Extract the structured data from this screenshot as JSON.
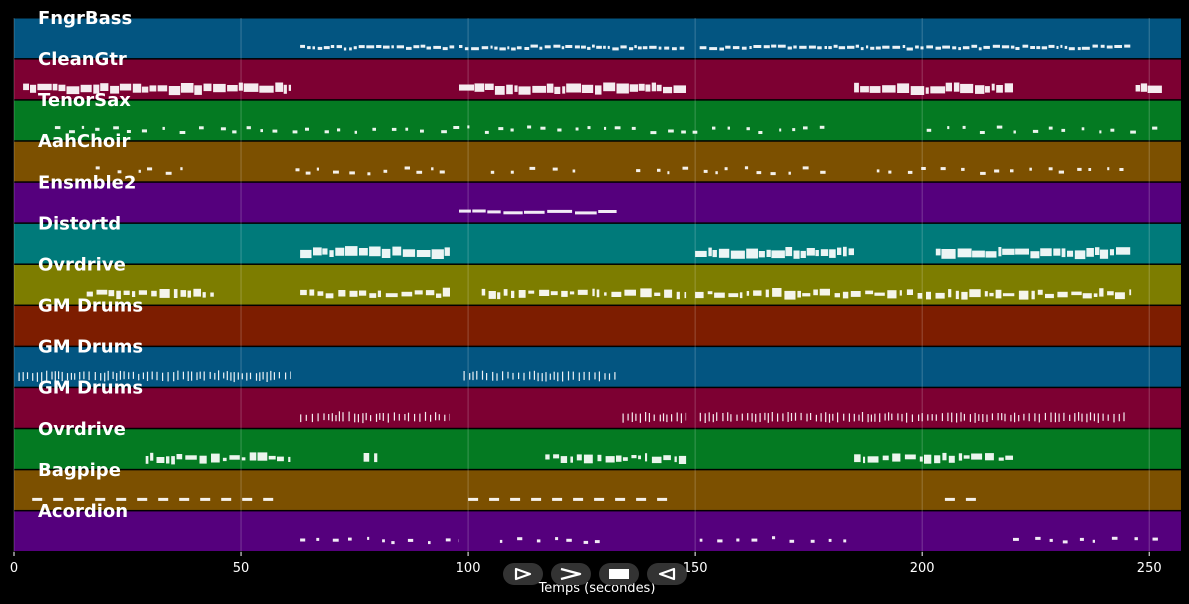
{
  "colors": {
    "background": "#000000",
    "track_palette": [
      "#035581",
      "#7d0032",
      "#047a22",
      "#7c5000",
      "#55007d",
      "#007a7a",
      "#7d7d00",
      "#7d1d00"
    ],
    "note": "#ffffff",
    "grid": "#ffffff"
  },
  "tracks": [
    {
      "name": "FngrBass",
      "color": "#035581"
    },
    {
      "name": "CleanGtr",
      "color": "#7d0032"
    },
    {
      "name": "TenorSax",
      "color": "#047a22"
    },
    {
      "name": "AahChoir",
      "color": "#7c5000"
    },
    {
      "name": "Ensmble2",
      "color": "#55007d"
    },
    {
      "name": "Distortd",
      "color": "#007a7a"
    },
    {
      "name": "Ovrdrive",
      "color": "#7d7d00"
    },
    {
      "name": "GM Drums",
      "color": "#7d1d00"
    },
    {
      "name": "GM Drums",
      "color": "#035581"
    },
    {
      "name": "GM Drums",
      "color": "#7d0032"
    },
    {
      "name": "Ovrdrive",
      "color": "#047a22"
    },
    {
      "name": "Bagpipe",
      "color": "#7c5000"
    },
    {
      "name": "Acordion",
      "color": "#55007d"
    }
  ],
  "axis": {
    "xlabel": "Temps (secondes)",
    "xlim": [
      0,
      257
    ],
    "ticks": [
      "0",
      "50",
      "100",
      "150",
      "200",
      "250"
    ],
    "tick_values": [
      0,
      50,
      100,
      150,
      200,
      250
    ]
  },
  "note_segments": [
    {
      "track": 0,
      "ranges": [
        [
          63,
          97
        ],
        [
          98,
          148
        ],
        [
          151,
          246
        ]
      ],
      "style": "dense"
    },
    {
      "track": 1,
      "ranges": [
        [
          2,
          61
        ],
        [
          98,
          148
        ],
        [
          185,
          220
        ],
        [
          247,
          253
        ]
      ],
      "style": "block"
    },
    {
      "track": 2,
      "ranges": [
        [
          9,
          181
        ],
        [
          201,
          252
        ]
      ],
      "style": "sparse"
    },
    {
      "track": 3,
      "ranges": [
        [
          18,
          38
        ],
        [
          62,
          97
        ],
        [
          105,
          126
        ],
        [
          137,
          181
        ],
        [
          190,
          246
        ]
      ],
      "style": "sparse"
    },
    {
      "track": 4,
      "ranges": [
        [
          98,
          133
        ]
      ],
      "style": "line"
    },
    {
      "track": 5,
      "ranges": [
        [
          63,
          96
        ],
        [
          150,
          185
        ],
        [
          203,
          246
        ]
      ],
      "style": "block"
    },
    {
      "track": 6,
      "ranges": [
        [
          16,
          44
        ],
        [
          63,
          96
        ],
        [
          103,
          148
        ],
        [
          150,
          246
        ]
      ],
      "style": "mixed"
    },
    {
      "track": 7,
      "ranges": [],
      "style": "none"
    },
    {
      "track": 8,
      "ranges": [
        [
          1,
          61
        ],
        [
          99,
          133
        ]
      ],
      "style": "ticks"
    },
    {
      "track": 9,
      "ranges": [
        [
          63,
          96
        ],
        [
          134,
          148
        ],
        [
          151,
          245
        ]
      ],
      "style": "ticks"
    },
    {
      "track": 10,
      "ranges": [
        [
          29,
          61
        ],
        [
          77,
          80
        ],
        [
          117,
          148
        ],
        [
          185,
          220
        ]
      ],
      "style": "mixed"
    },
    {
      "track": 11,
      "ranges": [
        [
          4,
          59
        ],
        [
          100,
          145
        ],
        [
          205,
          212
        ]
      ],
      "style": "dash"
    },
    {
      "track": 12,
      "ranges": [
        [
          63,
          98
        ],
        [
          107,
          129
        ],
        [
          151,
          186
        ],
        [
          220,
          254
        ]
      ],
      "style": "sparse"
    }
  ],
  "transport": {
    "buttons": [
      {
        "name": "play-icon",
        "label": "play"
      },
      {
        "name": "fast-forward-icon",
        "label": "fast-forward"
      },
      {
        "name": "stop-icon",
        "label": "stop"
      },
      {
        "name": "rewind-icon",
        "label": "rewind"
      }
    ]
  }
}
